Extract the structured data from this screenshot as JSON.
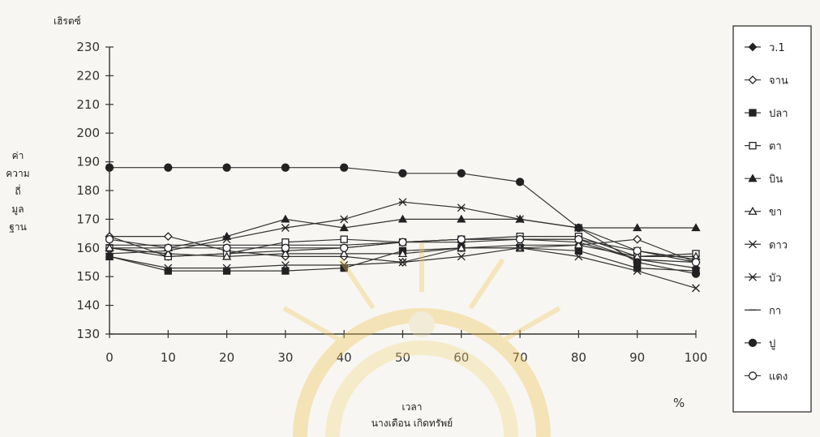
{
  "chart_data": {
    "type": "line",
    "ylabel_unit": "เฮิรตซ์",
    "ylabel": [
      "ค่า",
      "ความ",
      "ถี่",
      "มูล",
      "ฐาน"
    ],
    "xlabel": "เวลา",
    "x_unit": "%",
    "caption": "นางเดือน เกิดทรัพย์",
    "x": [
      0,
      10,
      20,
      30,
      40,
      50,
      60,
      70,
      80,
      90,
      100
    ],
    "xlim": [
      0,
      100
    ],
    "ylim": [
      130,
      230
    ],
    "yticks": [
      130,
      140,
      150,
      160,
      170,
      180,
      190,
      200,
      210,
      220,
      230
    ],
    "ytick_labels": [
      "130",
      "140",
      "150",
      "160",
      "170",
      "180",
      "190",
      "200",
      "210",
      "220",
      "230"
    ],
    "xtick_labels": [
      "0",
      "10",
      "20",
      "30",
      "40",
      "50",
      "60",
      "70",
      "80",
      "90",
      "100"
    ],
    "legend_position": "right",
    "series": [
      {
        "name": "ว.1",
        "marker": "diamond-filled",
        "values": [
          164,
          157,
          158,
          159,
          160,
          162,
          162,
          163,
          163,
          156,
          153
        ]
      },
      {
        "name": "จาน",
        "marker": "diamond-open",
        "values": [
          164,
          164,
          159,
          157,
          157,
          155,
          160,
          161,
          161,
          163,
          155
        ]
      },
      {
        "name": "ปลา",
        "marker": "square-filled",
        "values": [
          157,
          152,
          152,
          152,
          153,
          159,
          160,
          160,
          159,
          153,
          152
        ]
      },
      {
        "name": "ตา",
        "marker": "square-open",
        "values": [
          160,
          157,
          158,
          162,
          163,
          162,
          163,
          164,
          164,
          157,
          158
        ]
      },
      {
        "name": "บิน",
        "marker": "triangle-filled",
        "values": [
          160,
          160,
          164,
          170,
          167,
          170,
          170,
          170,
          167,
          167,
          167
        ]
      },
      {
        "name": "ขา",
        "marker": "triangle-open",
        "values": [
          160,
          158,
          157,
          158,
          158,
          158,
          160,
          160,
          161,
          157,
          157
        ]
      },
      {
        "name": "ดาว",
        "marker": "x",
        "values": [
          157,
          153,
          153,
          154,
          154,
          155,
          157,
          160,
          157,
          152,
          146
        ]
      },
      {
        "name": "บัว",
        "marker": "star",
        "values": [
          158,
          159,
          163,
          167,
          170,
          176,
          174,
          170,
          167,
          159,
          156
        ]
      },
      {
        "name": "กา",
        "marker": "dash",
        "values": [
          161,
          161,
          161,
          161,
          161,
          162,
          163,
          163,
          162,
          156,
          155
        ]
      },
      {
        "name": "ปู",
        "marker": "circle-filled",
        "values": [
          188,
          188,
          188,
          188,
          188,
          186,
          186,
          183,
          167,
          155,
          151
        ]
      },
      {
        "name": "แดง",
        "marker": "circle-open",
        "values": [
          163,
          160,
          160,
          160,
          160,
          162,
          163,
          163,
          163,
          159,
          155
        ]
      }
    ]
  }
}
